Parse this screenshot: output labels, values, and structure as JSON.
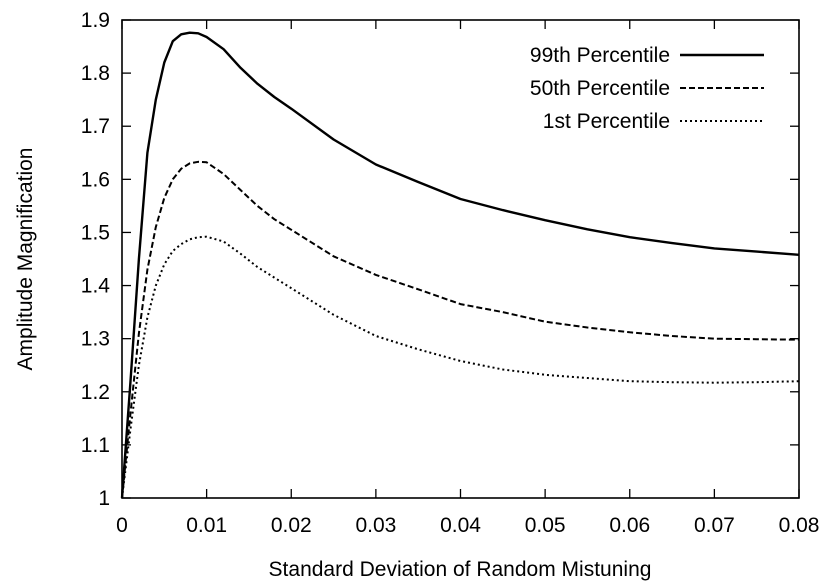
{
  "chart_data": {
    "type": "line",
    "title": "",
    "xlabel": "Standard Deviation of Random Mistuning",
    "ylabel": "Amplitude Magnification",
    "xlim": [
      0,
      0.08
    ],
    "ylim": [
      1,
      1.9
    ],
    "x_ticks": [
      "0",
      "0.01",
      "0.02",
      "0.03",
      "0.04",
      "0.05",
      "0.06",
      "0.07",
      "0.08"
    ],
    "y_ticks": [
      "1",
      "1.1",
      "1.2",
      "1.3",
      "1.4",
      "1.5",
      "1.6",
      "1.7",
      "1.8",
      "1.9"
    ],
    "grid": false,
    "legend_position": "top-right",
    "series": [
      {
        "name": "99th Percentile",
        "line_style": "solid",
        "x": [
          0,
          0.001,
          0.002,
          0.003,
          0.004,
          0.005,
          0.006,
          0.007,
          0.008,
          0.009,
          0.01,
          0.012,
          0.014,
          0.016,
          0.018,
          0.02,
          0.025,
          0.03,
          0.035,
          0.04,
          0.045,
          0.05,
          0.055,
          0.06,
          0.065,
          0.07,
          0.075,
          0.08
        ],
        "y": [
          1.0,
          1.22,
          1.45,
          1.65,
          1.75,
          1.82,
          1.86,
          1.873,
          1.876,
          1.875,
          1.868,
          1.845,
          1.81,
          1.78,
          1.755,
          1.733,
          1.675,
          1.628,
          1.595,
          1.563,
          1.542,
          1.523,
          1.506,
          1.491,
          1.48,
          1.47,
          1.464,
          1.458
        ]
      },
      {
        "name": "50th Percentile",
        "line_style": "dashed",
        "x": [
          0,
          0.001,
          0.002,
          0.003,
          0.004,
          0.005,
          0.006,
          0.007,
          0.008,
          0.009,
          0.01,
          0.012,
          0.014,
          0.016,
          0.018,
          0.02,
          0.025,
          0.03,
          0.035,
          0.04,
          0.045,
          0.05,
          0.055,
          0.06,
          0.065,
          0.07,
          0.075,
          0.08
        ],
        "y": [
          1.0,
          1.16,
          1.31,
          1.43,
          1.51,
          1.565,
          1.6,
          1.62,
          1.63,
          1.633,
          1.632,
          1.61,
          1.58,
          1.55,
          1.525,
          1.505,
          1.455,
          1.42,
          1.393,
          1.365,
          1.35,
          1.332,
          1.321,
          1.312,
          1.305,
          1.3,
          1.299,
          1.298
        ]
      },
      {
        "name": "1st Percentile",
        "line_style": "dotted",
        "x": [
          0,
          0.001,
          0.002,
          0.003,
          0.004,
          0.005,
          0.006,
          0.007,
          0.008,
          0.009,
          0.01,
          0.012,
          0.014,
          0.016,
          0.018,
          0.02,
          0.025,
          0.03,
          0.035,
          0.04,
          0.045,
          0.05,
          0.055,
          0.06,
          0.065,
          0.07,
          0.075,
          0.08
        ],
        "y": [
          1.0,
          1.13,
          1.25,
          1.34,
          1.4,
          1.44,
          1.465,
          1.478,
          1.487,
          1.491,
          1.492,
          1.483,
          1.46,
          1.435,
          1.415,
          1.395,
          1.345,
          1.305,
          1.28,
          1.258,
          1.242,
          1.232,
          1.226,
          1.22,
          1.218,
          1.217,
          1.218,
          1.22
        ]
      }
    ]
  }
}
